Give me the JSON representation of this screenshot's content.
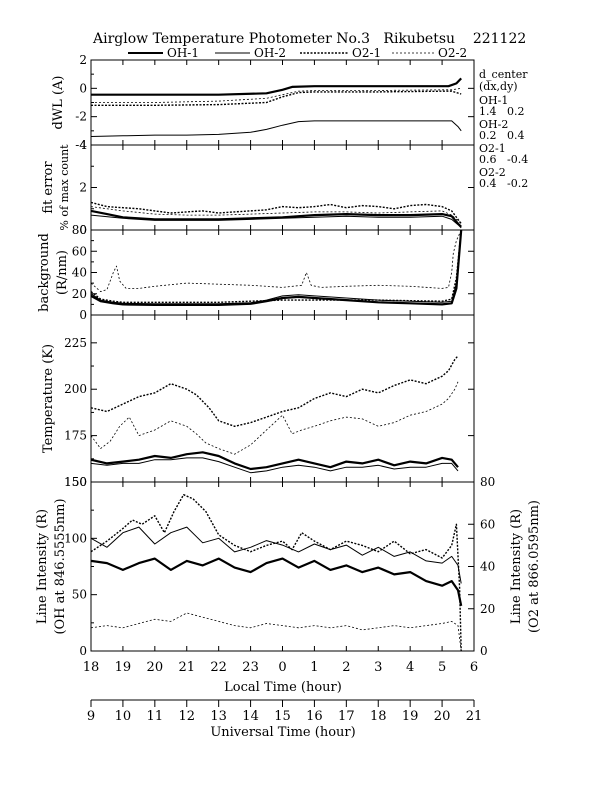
{
  "title": "Airglow Temperature Photometer No.3   Rikubetsu    221122",
  "legend": [
    "OH-1",
    "OH-2",
    "O2-1",
    "O2-2"
  ],
  "side_info": {
    "header1": "d_center",
    "header2": "(dx,dy)",
    "rows": [
      {
        "name": "OH-1",
        "vals": "1.4   0.2"
      },
      {
        "name": "OH-2",
        "vals": "0.2   0.4"
      },
      {
        "name": "O2-1",
        "vals": "0.6   -0.4"
      },
      {
        "name": "O2-2",
        "vals": "0.4   -0.2"
      }
    ]
  },
  "colors": {
    "axis": "#000000",
    "series": "#000000"
  },
  "chart_data": [
    {
      "type": "line",
      "panel": "dwl",
      "ylabel": "dWL (A)",
      "ylim": [
        -4,
        2
      ],
      "yticks": [
        "2",
        "0",
        "-2",
        "-4"
      ],
      "xlim": [
        18,
        30
      ],
      "series": [
        {
          "name": "OH-1",
          "x": [
            18,
            20,
            22,
            23.5,
            24,
            24.3,
            25,
            27,
            29,
            29.2,
            29.45,
            29.6
          ],
          "y": [
            -0.45,
            -0.45,
            -0.45,
            -0.35,
            -0.1,
            0.1,
            0.15,
            0.15,
            0.15,
            0.15,
            0.35,
            0.7
          ]
        },
        {
          "name": "OH-2",
          "x": [
            18,
            19,
            20,
            21,
            22,
            23,
            23.5,
            24,
            24.5,
            25,
            27,
            29,
            29.3,
            29.5,
            29.6
          ],
          "y": [
            -3.4,
            -3.35,
            -3.3,
            -3.3,
            -3.25,
            -3.1,
            -2.9,
            -2.6,
            -2.35,
            -2.3,
            -2.3,
            -2.3,
            -2.3,
            -2.7,
            -3.0
          ]
        },
        {
          "name": "O2-1",
          "x": [
            18,
            20,
            22,
            23.5,
            24,
            24.5,
            25,
            27,
            29,
            29.3,
            29.6
          ],
          "y": [
            -1.2,
            -1.2,
            -1.15,
            -1.0,
            -0.6,
            -0.3,
            -0.25,
            -0.25,
            -0.2,
            -0.2,
            -0.4
          ]
        },
        {
          "name": "O2-2",
          "x": [
            18,
            20,
            22,
            23.5,
            24,
            24.5,
            25,
            27,
            29,
            29.3,
            29.6
          ],
          "y": [
            -1.0,
            -1.0,
            -0.9,
            -0.7,
            -0.45,
            -0.2,
            -0.15,
            -0.15,
            -0.1,
            -0.1,
            0.0
          ]
        }
      ]
    },
    {
      "type": "line",
      "panel": "fit_error",
      "ylabel": "fit error",
      "ylabel2": "% of max count",
      "ylim": [
        0,
        4
      ],
      "yticks": [
        "4",
        "2",
        "0"
      ],
      "xlim": [
        18,
        30
      ],
      "series": [
        {
          "name": "OH-1",
          "x": [
            18,
            18.5,
            19,
            20,
            22,
            23,
            24,
            25,
            26,
            27,
            28,
            29,
            29.3,
            29.5,
            29.6
          ],
          "y": [
            0.9,
            0.75,
            0.6,
            0.5,
            0.5,
            0.55,
            0.6,
            0.7,
            0.75,
            0.7,
            0.7,
            0.75,
            0.65,
            0.3,
            0.15
          ]
        },
        {
          "name": "OH-2",
          "x": [
            18,
            19,
            20,
            22,
            23,
            24,
            25,
            26,
            27,
            28,
            29,
            29.3,
            29.5,
            29.6
          ],
          "y": [
            0.7,
            0.55,
            0.45,
            0.45,
            0.5,
            0.55,
            0.6,
            0.65,
            0.6,
            0.6,
            0.65,
            0.5,
            0.25,
            0.1
          ]
        },
        {
          "name": "O2-1",
          "x": [
            18,
            18.5,
            19,
            19.5,
            20,
            20.5,
            21,
            21.5,
            22,
            22.5,
            23,
            23.5,
            24,
            24.5,
            25,
            25.5,
            26,
            26.5,
            27,
            27.5,
            28,
            28.5,
            29,
            29.3,
            29.5,
            29.6
          ],
          "y": [
            1.3,
            1.1,
            1.05,
            1.0,
            0.9,
            0.8,
            0.85,
            0.9,
            0.8,
            0.85,
            0.9,
            0.95,
            1.1,
            1.05,
            1.1,
            1.2,
            1.05,
            1.15,
            1.1,
            1.0,
            1.15,
            1.2,
            1.1,
            0.9,
            0.5,
            0.3
          ]
        },
        {
          "name": "O2-2",
          "x": [
            18,
            19,
            20,
            21,
            22,
            23,
            24,
            25,
            26,
            27,
            28,
            29,
            29.3,
            29.6
          ],
          "y": [
            1.1,
            0.9,
            0.75,
            0.7,
            0.7,
            0.75,
            0.8,
            0.85,
            0.85,
            0.8,
            0.85,
            0.9,
            0.7,
            0.3
          ]
        }
      ]
    },
    {
      "type": "line",
      "panel": "background",
      "ylabel": "background",
      "ylabel2": "(R/nm)",
      "ylim": [
        0,
        80
      ],
      "yticks": [
        "80",
        "60",
        "40",
        "20",
        "0"
      ],
      "xlim": [
        18,
        30
      ],
      "series": [
        {
          "name": "OH-1",
          "x": [
            18,
            18.3,
            18.7,
            19,
            20,
            21,
            22,
            23,
            23.5,
            24,
            24.5,
            25,
            26,
            27,
            28,
            29,
            29.3,
            29.45,
            29.6
          ],
          "y": [
            18,
            13,
            11,
            10,
            9.5,
            9.5,
            9.5,
            10.5,
            13,
            16,
            17,
            16,
            14,
            12,
            11,
            10,
            11,
            25,
            80
          ]
        },
        {
          "name": "OH-2",
          "x": [
            18,
            18.3,
            18.7,
            19,
            20,
            21,
            22,
            23,
            23.5,
            24,
            24.5,
            25,
            26,
            27,
            28,
            29,
            29.3,
            29.45,
            29.6
          ],
          "y": [
            20,
            14,
            12,
            11,
            10.5,
            10.5,
            10.5,
            11.5,
            14,
            18,
            19,
            18,
            16,
            14,
            13,
            12,
            13,
            30,
            80
          ]
        },
        {
          "name": "O2-1",
          "x": [
            18,
            18.3,
            18.7,
            19,
            20,
            21,
            22,
            23,
            24,
            25,
            26,
            27,
            28,
            29,
            29.3,
            29.45,
            29.6
          ],
          "y": [
            22,
            15,
            13,
            12,
            12,
            12,
            12,
            13,
            14,
            14,
            14,
            14,
            13.5,
            13,
            15,
            35,
            80
          ]
        },
        {
          "name": "O2-2",
          "x": [
            18,
            18.3,
            18.5,
            18.7,
            18.8,
            18.9,
            19.1,
            19.5,
            20,
            21,
            22,
            23,
            23.5,
            24,
            24.6,
            24.75,
            24.9,
            25.2,
            26,
            27,
            28,
            29,
            29.2,
            29.3,
            29.35,
            29.45,
            29.6
          ],
          "y": [
            30,
            22,
            24,
            40,
            46,
            32,
            25,
            25,
            27,
            30,
            29,
            28,
            27,
            26,
            28,
            40,
            28,
            26,
            27,
            28,
            27,
            25,
            26,
            40,
            58,
            70,
            80
          ]
        }
      ]
    },
    {
      "type": "line",
      "panel": "temperature",
      "ylabel": "Temperature (K)",
      "ylim": [
        150,
        240
      ],
      "yticks": [
        "225",
        "200",
        "175",
        "150"
      ],
      "xlim": [
        18,
        30
      ],
      "series": [
        {
          "name": "OH-1",
          "x": [
            18,
            18.5,
            19,
            19.5,
            20,
            20.5,
            21,
            21.5,
            22,
            22.5,
            23,
            23.5,
            24,
            24.5,
            25,
            25.5,
            26,
            26.5,
            27,
            27.5,
            28,
            28.5,
            29,
            29.3,
            29.5
          ],
          "y": [
            162,
            160,
            161,
            162,
            164,
            163,
            165,
            166,
            164,
            160,
            157,
            158,
            160,
            162,
            160,
            158,
            161,
            160,
            162,
            159,
            161,
            160,
            163,
            162,
            158
          ]
        },
        {
          "name": "OH-2",
          "x": [
            18,
            18.5,
            19,
            19.5,
            20,
            20.5,
            21,
            21.5,
            22,
            22.5,
            23,
            23.5,
            24,
            24.5,
            25,
            25.5,
            26,
            26.5,
            27,
            27.5,
            28,
            28.5,
            29,
            29.3,
            29.5
          ],
          "y": [
            160,
            159,
            160,
            160,
            162,
            162,
            163,
            163,
            161,
            158,
            155,
            156,
            158,
            159,
            158,
            156,
            158,
            158,
            159,
            157,
            158,
            158,
            160,
            160,
            156
          ]
        },
        {
          "name": "O2-1",
          "x": [
            18,
            18.5,
            19,
            19.5,
            20,
            20.5,
            21,
            21.3,
            21.7,
            22,
            22.5,
            23,
            23.5,
            24,
            24.5,
            25,
            25.5,
            26,
            26.5,
            27,
            27.5,
            28,
            28.5,
            29,
            29.2,
            29.4,
            29.5
          ],
          "y": [
            190,
            188,
            192,
            196,
            198,
            203,
            200,
            197,
            190,
            183,
            180,
            182,
            185,
            188,
            190,
            195,
            198,
            196,
            200,
            198,
            202,
            205,
            203,
            207,
            210,
            216,
            218
          ]
        },
        {
          "name": "O2-2",
          "x": [
            18,
            18.3,
            18.6,
            18.9,
            19.2,
            19.5,
            20,
            20.5,
            21,
            21.3,
            21.6,
            22,
            22.5,
            23,
            23.5,
            24,
            24.3,
            24.6,
            25,
            25.5,
            26,
            26.5,
            27,
            27.5,
            28,
            28.5,
            29,
            29.2,
            29.4,
            29.5
          ],
          "y": [
            175,
            168,
            172,
            180,
            185,
            175,
            178,
            183,
            180,
            176,
            171,
            168,
            165,
            170,
            178,
            186,
            176,
            178,
            180,
            183,
            185,
            184,
            180,
            182,
            186,
            188,
            192,
            195,
            200,
            204
          ]
        }
      ]
    },
    {
      "type": "line",
      "panel": "intensity",
      "ylabel": "Line Intensity (R)",
      "ylabel2": "(OH at 846.5555nm)",
      "ylabel_right": "Line Intensity (R)",
      "ylabel_right2": "(O2 at 866.0595nm)",
      "ylim": [
        0,
        150
      ],
      "yticks": [
        "150",
        "100",
        "50",
        "0"
      ],
      "ylim_right": [
        0,
        80
      ],
      "yticks_right": [
        "80",
        "60",
        "40",
        "20",
        "0"
      ],
      "xlim": [
        18,
        30
      ],
      "x_bottom_label": "Local Time (hour)",
      "x_bottom_ticks": [
        "18",
        "19",
        "20",
        "21",
        "22",
        "23",
        "0",
        "1",
        "2",
        "3",
        "4",
        "5",
        "6"
      ],
      "x_ut_label": "Universal Time (hour)",
      "x_ut_ticks": [
        "9",
        "10",
        "11",
        "12",
        "13",
        "14",
        "15",
        "16",
        "17",
        "18",
        "19",
        "20",
        "21"
      ],
      "series": [
        {
          "name": "OH-1",
          "axis": "left",
          "x": [
            18,
            18.5,
            19,
            19.5,
            20,
            20.5,
            21,
            21.5,
            22,
            22.5,
            23,
            23.5,
            24,
            24.5,
            25,
            25.5,
            26,
            26.5,
            27,
            27.5,
            28,
            28.5,
            29,
            29.3,
            29.5,
            29.6
          ],
          "y": [
            80,
            78,
            72,
            78,
            82,
            72,
            80,
            76,
            82,
            74,
            70,
            78,
            82,
            74,
            80,
            72,
            76,
            70,
            74,
            68,
            70,
            62,
            58,
            62,
            54,
            40
          ]
        },
        {
          "name": "OH-2",
          "axis": "left",
          "x": [
            18,
            18.5,
            19,
            19.5,
            20,
            20.5,
            21,
            21.5,
            22,
            22.5,
            23,
            23.5,
            24,
            24.5,
            25,
            25.5,
            26,
            26.5,
            27,
            27.5,
            28,
            28.5,
            29,
            29.3,
            29.5,
            29.6
          ],
          "y": [
            100,
            92,
            105,
            110,
            95,
            105,
            110,
            96,
            100,
            88,
            92,
            98,
            94,
            88,
            95,
            90,
            94,
            85,
            92,
            84,
            88,
            80,
            78,
            84,
            76,
            60
          ]
        },
        {
          "name": "O2-1",
          "axis": "right",
          "x": [
            18,
            18.5,
            19,
            19.3,
            19.6,
            20,
            20.3,
            20.6,
            20.9,
            21.2,
            21.6,
            22,
            22.5,
            23,
            23.5,
            24,
            24.3,
            24.6,
            25,
            25.5,
            26,
            26.5,
            27,
            27.5,
            28,
            28.5,
            29,
            29.3,
            29.45,
            29.55,
            29.6
          ],
          "y": [
            47,
            52,
            58,
            62,
            60,
            64,
            56,
            66,
            74,
            72,
            66,
            55,
            50,
            47,
            50,
            52,
            48,
            56,
            52,
            48,
            52,
            50,
            47,
            52,
            46,
            48,
            44,
            50,
            60,
            30,
            0
          ]
        },
        {
          "name": "O2-2",
          "axis": "right",
          "x": [
            18,
            18.5,
            19,
            19.5,
            20,
            20.5,
            21,
            21.5,
            22,
            22.5,
            23,
            23.5,
            24,
            24.5,
            25,
            25.5,
            26,
            26.5,
            27,
            27.5,
            28,
            28.5,
            29,
            29.3,
            29.5,
            29.6
          ],
          "y": [
            11,
            12,
            11,
            13,
            15,
            14,
            18,
            16,
            14,
            12,
            11,
            13,
            12,
            11,
            12,
            11,
            12,
            10,
            11,
            12,
            11,
            12,
            13,
            14,
            12,
            0
          ]
        }
      ]
    }
  ]
}
